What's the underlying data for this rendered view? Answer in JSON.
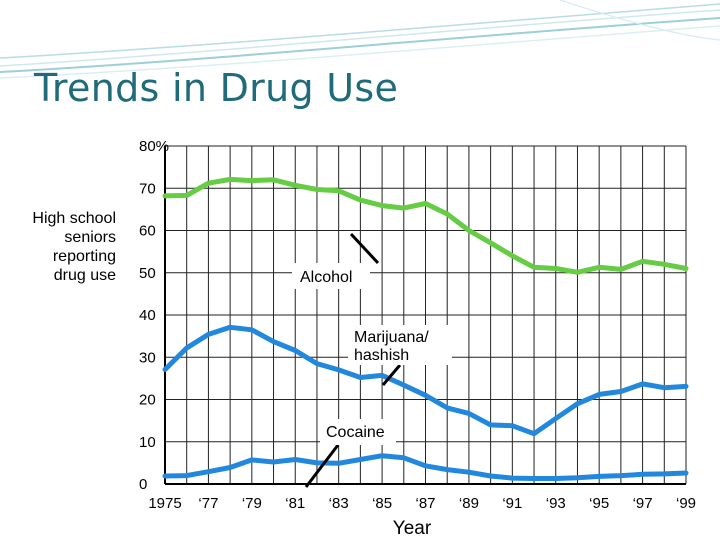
{
  "slide": {
    "title": "Trends in Drug Use"
  },
  "chart_data": {
    "type": "line",
    "title": "Trends in Drug Use",
    "ylabel_lines": [
      "High school",
      "seniors",
      "reporting",
      "drug use"
    ],
    "xlabel": "Year",
    "ylim": [
      0,
      80
    ],
    "xlim": [
      1975,
      1999
    ],
    "y_ticks": [
      {
        "value": 80,
        "label": "80%"
      },
      {
        "value": 70,
        "label": "70"
      },
      {
        "value": 60,
        "label": "60"
      },
      {
        "value": 50,
        "label": "50"
      },
      {
        "value": 40,
        "label": "40"
      },
      {
        "value": 30,
        "label": "30"
      },
      {
        "value": 20,
        "label": "20"
      },
      {
        "value": 10,
        "label": "10"
      },
      {
        "value": 0,
        "label": "0"
      }
    ],
    "x_ticks": [
      {
        "value": 1975,
        "label": "1975"
      },
      {
        "value": 1977,
        "label": "‘77"
      },
      {
        "value": 1979,
        "label": "‘79"
      },
      {
        "value": 1981,
        "label": "‘81"
      },
      {
        "value": 1983,
        "label": "‘83"
      },
      {
        "value": 1985,
        "label": "‘85"
      },
      {
        "value": 1987,
        "label": "‘87"
      },
      {
        "value": 1989,
        "label": "‘89"
      },
      {
        "value": 1991,
        "label": "‘91"
      },
      {
        "value": 1993,
        "label": "‘93"
      },
      {
        "value": 1995,
        "label": "‘95"
      },
      {
        "value": 1997,
        "label": "‘97"
      },
      {
        "value": 1999,
        "label": "‘99"
      }
    ],
    "grid": true,
    "series": [
      {
        "name": "Alcohol",
        "color": "#66cc44",
        "x": [
          1975,
          1976,
          1977,
          1978,
          1979,
          1980,
          1981,
          1982,
          1983,
          1984,
          1985,
          1986,
          1987,
          1988,
          1989,
          1990,
          1991,
          1992,
          1993,
          1994,
          1995,
          1996,
          1997,
          1998,
          1999
        ],
        "values": [
          68.2,
          68.3,
          71.2,
          72.1,
          71.8,
          72.0,
          70.7,
          69.7,
          69.4,
          67.2,
          65.9,
          65.3,
          66.4,
          63.9,
          60.0,
          57.1,
          54.0,
          51.3,
          51.0,
          50.1,
          51.3,
          50.8,
          52.7,
          52.0,
          51.0
        ]
      },
      {
        "name": "Marijuana/ hashish",
        "color": "#2288dd",
        "x": [
          1975,
          1976,
          1977,
          1978,
          1979,
          1980,
          1981,
          1982,
          1983,
          1984,
          1985,
          1986,
          1987,
          1988,
          1989,
          1990,
          1991,
          1992,
          1993,
          1994,
          1995,
          1996,
          1997,
          1998,
          1999
        ],
        "values": [
          27.1,
          32.2,
          35.4,
          37.1,
          36.5,
          33.7,
          31.6,
          28.5,
          27.0,
          25.2,
          25.7,
          23.4,
          21.0,
          18.0,
          16.7,
          14.0,
          13.8,
          11.9,
          15.5,
          19.0,
          21.2,
          21.9,
          23.7,
          22.8,
          23.1
        ]
      },
      {
        "name": "Cocaine",
        "color": "#2288dd",
        "x": [
          1975,
          1976,
          1977,
          1978,
          1979,
          1980,
          1981,
          1982,
          1983,
          1984,
          1985,
          1986,
          1987,
          1988,
          1989,
          1990,
          1991,
          1992,
          1993,
          1994,
          1995,
          1996,
          1997,
          1998,
          1999
        ],
        "values": [
          1.9,
          2.0,
          2.9,
          3.9,
          5.7,
          5.2,
          5.8,
          5.0,
          4.9,
          5.8,
          6.7,
          6.2,
          4.3,
          3.4,
          2.8,
          1.9,
          1.4,
          1.3,
          1.3,
          1.5,
          1.8,
          2.0,
          2.3,
          2.4,
          2.6
        ]
      }
    ],
    "callouts": [
      {
        "series": "Alcohol",
        "lines": [
          "Alcohol"
        ]
      },
      {
        "series": "Marijuana/ hashish",
        "lines": [
          "Marijuana/",
          "hashish"
        ]
      },
      {
        "series": "Cocaine",
        "lines": [
          "Cocaine"
        ]
      }
    ]
  }
}
